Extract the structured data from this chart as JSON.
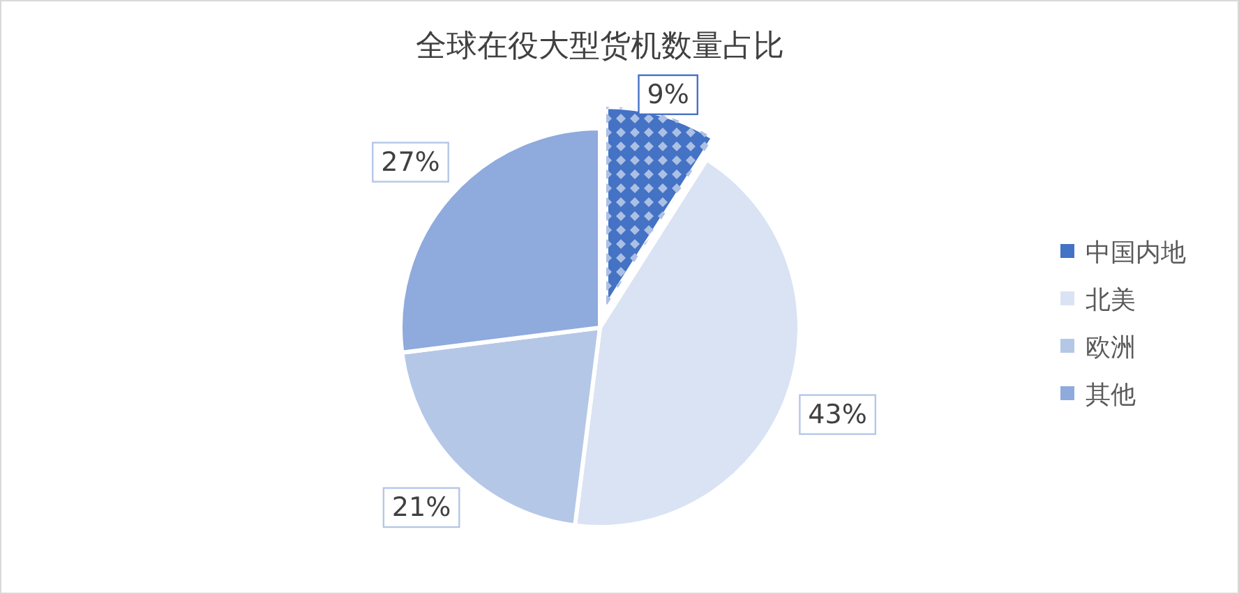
{
  "chart_data": {
    "type": "pie",
    "title": "全球在役大型货机数量占比",
    "categories": [
      "中国内地",
      "北美",
      "欧洲",
      "其他"
    ],
    "values": [
      9,
      43,
      21,
      27
    ],
    "value_labels": [
      "9%",
      "43%",
      "21%",
      "27%"
    ],
    "colors": [
      "#4472c4",
      "#dae3f3",
      "#b4c7e7",
      "#8faadc"
    ],
    "legend": "right"
  }
}
